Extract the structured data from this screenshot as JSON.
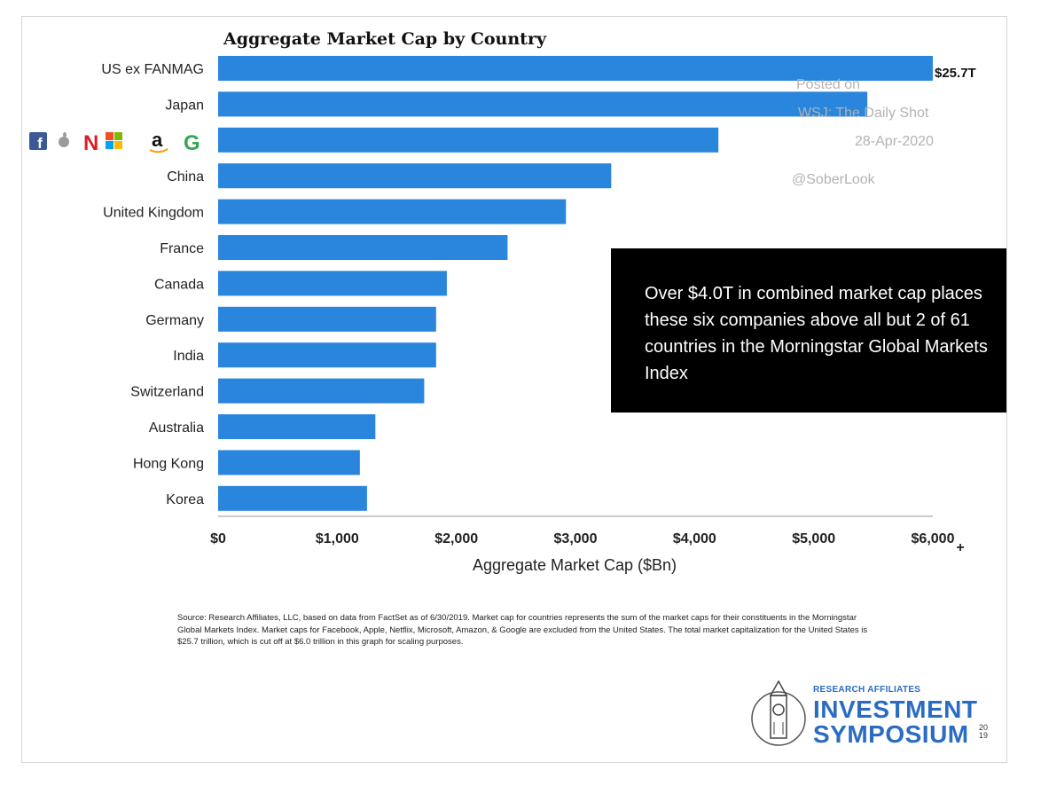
{
  "chart_data": {
    "type": "bar",
    "orientation": "horizontal",
    "title": "Aggregate Market Cap by Country",
    "xlabel": "Aggregate Market Cap ($Bn)",
    "ylabel": "",
    "categories": [
      "US ex FANMAG",
      "Japan",
      "FANMAG",
      "China",
      "United Kingdom",
      "France",
      "Canada",
      "Germany",
      "India",
      "Switzerland",
      "Australia",
      "Hong Kong",
      "Korea"
    ],
    "values": [
      6000,
      5450,
      4200,
      3300,
      2920,
      2430,
      1920,
      1830,
      1830,
      1730,
      1320,
      1190,
      1250
    ],
    "xlim": [
      0,
      6000
    ],
    "x_ticks": [
      "$0",
      "$1,000",
      "$2,000",
      "$3,000",
      "$4,000",
      "$5,000",
      "$6,000"
    ],
    "x_tick_values": [
      0,
      1000,
      2000,
      3000,
      4000,
      5000,
      6000
    ],
    "data_labels": [
      {
        "category": "US ex FANMAG",
        "text": "$25.7T"
      }
    ],
    "truncation_marker": "+",
    "grid": false,
    "bar_color": "#2a85dc"
  },
  "icons": [
    "facebook-icon",
    "apple-icon",
    "netflix-icon",
    "microsoft-icon",
    "amazon-icon",
    "google-icon"
  ],
  "watermark": {
    "line1": "Posted on",
    "line2": "WSJ: The Daily Shot",
    "line3": "28-Apr-2020",
    "line4": "@SoberLook"
  },
  "callout": {
    "text": "Over $4.0T in combined market cap places these six companies above all but 2 of 61 countries in the Morningstar Global Markets Index"
  },
  "source_note": "Source: Research Affiliates, LLC, based on data from FactSet as of 6/30/2019. Market cap for countries represents the sum of the market caps for their constituents in the Morningstar Global Markets Index. Market caps for Facebook, Apple, Netflix, Microsoft, Amazon, & Google are excluded from the United States. The total market capitalization for the United States is $25.7 trillion, which is cut off at $6.0 trillion in this graph for scaling purposes.",
  "logo": {
    "small": "RESEARCH AFFILIATES",
    "line1": "INVESTMENT",
    "line2": "SYMPOSIUM",
    "year_top": "20",
    "year_bottom": "19"
  }
}
